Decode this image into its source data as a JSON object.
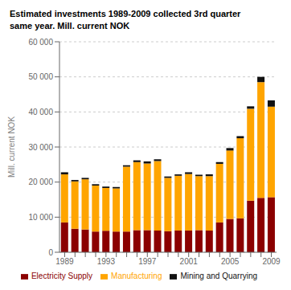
{
  "chart_data": {
    "type": "bar",
    "title": "Estimated investments 1989-2009 collected 3rd quarter\nsame year. Mill. current NOK",
    "ylabel": "Mill. current NOK",
    "categories": [
      "1989",
      null,
      null,
      null,
      "1993",
      null,
      null,
      null,
      "1997",
      null,
      null,
      null,
      "2001",
      null,
      null,
      null,
      "2005",
      null,
      null,
      null,
      "2009"
    ],
    "series": [
      {
        "name": "Electricity Supply",
        "color": "#8B0000",
        "values": [
          8500,
          6700,
          6500,
          5900,
          6100,
          5900,
          5900,
          6300,
          6300,
          6200,
          6000,
          6200,
          6200,
          6300,
          6200,
          8500,
          9500,
          9700,
          14700,
          15500,
          15700
        ]
      },
      {
        "name": "Manufacturing",
        "color": "#FFA500",
        "values": [
          13700,
          13500,
          14300,
          13100,
          12200,
          12300,
          18500,
          19400,
          19000,
          19800,
          15200,
          15600,
          16100,
          15400,
          15500,
          16700,
          19500,
          22800,
          26200,
          33000,
          25800
        ]
      },
      {
        "name": "Mining and Quarrying",
        "color": "#111111",
        "values": [
          600,
          400,
          400,
          400,
          400,
          400,
          400,
          500,
          600,
          500,
          400,
          400,
          500,
          400,
          500,
          500,
          700,
          600,
          700,
          1500,
          1800
        ]
      }
    ],
    "stacked": true,
    "ylim": [
      0,
      60000
    ],
    "yticks": [
      0,
      {
        "value": 10000,
        "label": "10 000"
      },
      {
        "value": 20000,
        "label": "20 000"
      },
      {
        "value": 30000,
        "label": "30 000"
      },
      {
        "value": 40000,
        "label": "40 000"
      },
      {
        "value": 50000,
        "label": "50 000"
      },
      {
        "value": 60000,
        "label": "60 000"
      }
    ],
    "grid": true,
    "legend": "bottom"
  }
}
